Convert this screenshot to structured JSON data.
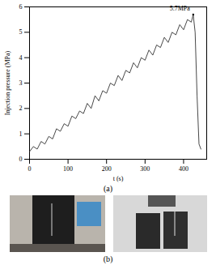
{
  "chart_data": {
    "type": "line",
    "x_label": "t (s)",
    "y_label": "Injection pressure (MPa)",
    "caption": "(a)",
    "x": [
      0,
      10,
      20,
      30,
      40,
      50,
      60,
      70,
      80,
      90,
      100,
      110,
      120,
      130,
      140,
      150,
      160,
      170,
      180,
      190,
      200,
      210,
      220,
      230,
      240,
      250,
      260,
      270,
      280,
      290,
      300,
      310,
      320,
      330,
      340,
      350,
      360,
      370,
      380,
      390,
      400,
      410,
      420,
      425,
      430,
      435,
      440,
      445
    ],
    "values": [
      0.3,
      0.5,
      0.4,
      0.7,
      0.6,
      0.9,
      0.8,
      1.2,
      1.1,
      1.4,
      1.3,
      1.7,
      1.6,
      1.9,
      1.8,
      2.2,
      2.0,
      2.5,
      2.3,
      2.7,
      2.6,
      3.0,
      2.9,
      3.3,
      3.1,
      3.5,
      3.4,
      3.8,
      3.6,
      4.0,
      3.9,
      4.3,
      4.1,
      4.5,
      4.4,
      4.8,
      4.6,
      5.0,
      4.9,
      5.3,
      5.1,
      5.5,
      5.4,
      5.7,
      5.0,
      2.5,
      0.6,
      0.4
    ],
    "color": "#333333",
    "xlim": [
      0,
      460
    ],
    "xticks": [
      0,
      100,
      200,
      300,
      400
    ],
    "ylim": [
      0,
      6
    ],
    "yticks": [
      0,
      1,
      2,
      3,
      4,
      5,
      6
    ],
    "grid": false,
    "annotations": [
      {
        "text": "5.7MPa",
        "x": 425,
        "y": 5.7
      }
    ]
  },
  "photos": {
    "caption": "(b)"
  }
}
